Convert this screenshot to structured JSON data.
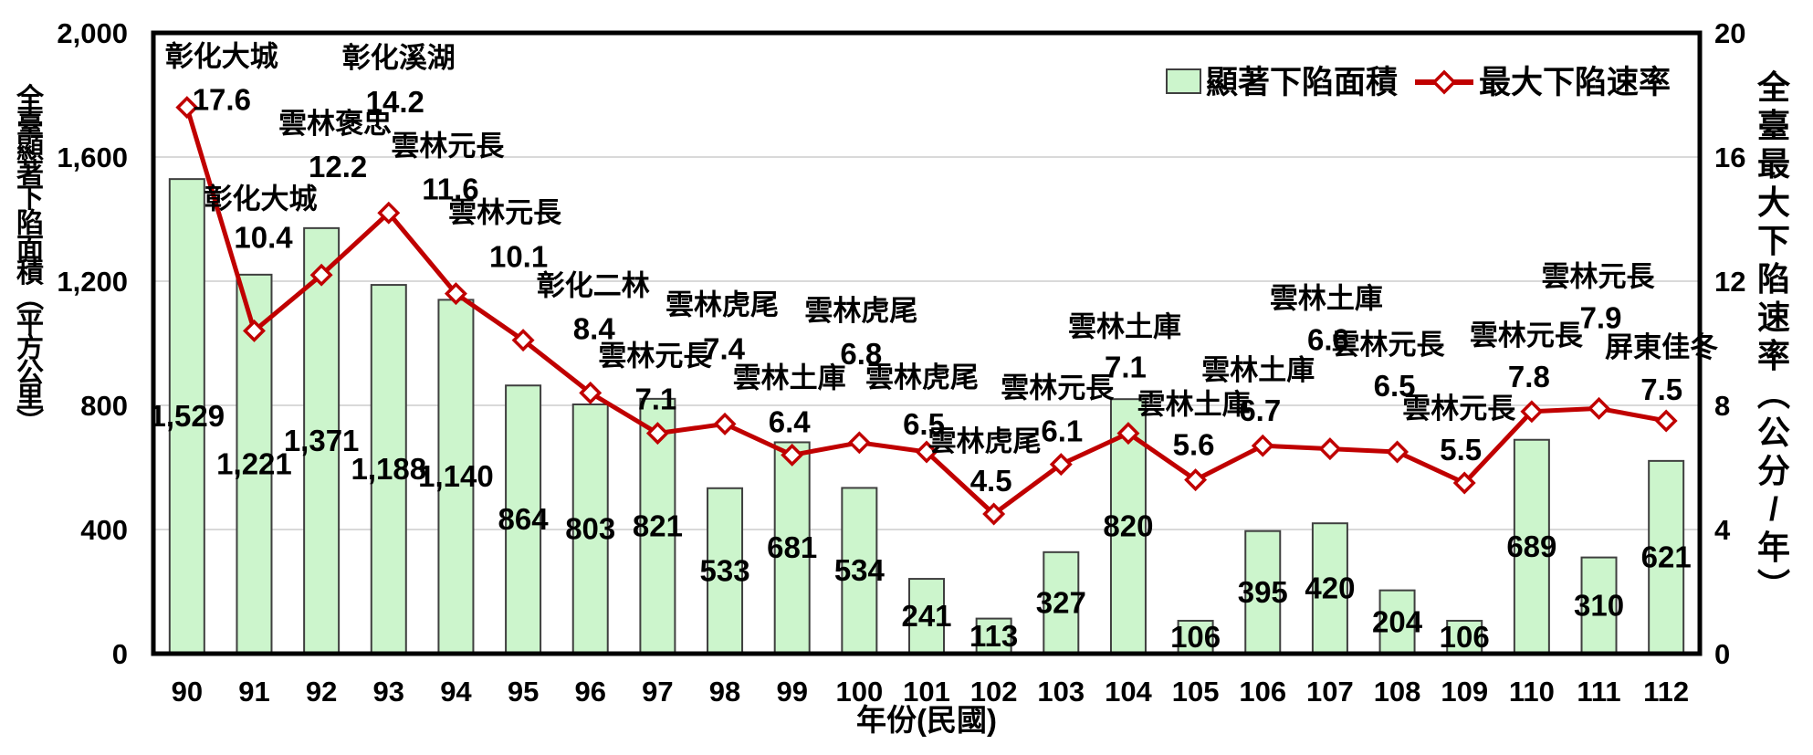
{
  "chart": {
    "background": "#ffffff",
    "colors": {
      "bar_fill": "#ccf5cc",
      "bar_border": "#3f3f3f",
      "line": "#c00000",
      "marker_fill": "#ffffff",
      "grid": "#d9d9d9",
      "frame": "#000000",
      "text": "#000000"
    },
    "legend": {
      "area_label": "顯著下陷面積",
      "rate_label": "最大下陷速率"
    }
  },
  "chart_data": {
    "type": "combo-bar-line",
    "title": "",
    "xlabel": "年份(民國)",
    "ylabel_left": "全臺顯著下陷面積(平方公里)",
    "ylabel_right": "全臺最大下陷速率(公分/年)",
    "categories": [
      "90",
      "91",
      "92",
      "93",
      "94",
      "95",
      "96",
      "97",
      "98",
      "99",
      "100",
      "101",
      "102",
      "103",
      "104",
      "105",
      "106",
      "107",
      "108",
      "109",
      "110",
      "111",
      "112"
    ],
    "left_axis": {
      "min": 0,
      "max": 2000,
      "tick_step": 400,
      "tick_labels": [
        "0",
        "400",
        "800",
        "1,200",
        "1,600",
        "2,000"
      ]
    },
    "right_axis": {
      "min": 0,
      "max": 20,
      "tick_step": 4,
      "tick_labels": [
        "0",
        "4",
        "8",
        "12",
        "16",
        "20"
      ]
    },
    "grid": true,
    "legend_position": "top-right",
    "series": [
      {
        "name": "顯著下陷面積",
        "type": "bar",
        "axis": "left",
        "unit": "平方公里",
        "values": [
          1529,
          1221,
          1371,
          1188,
          1140,
          864,
          803,
          821,
          533,
          681,
          534,
          241,
          113,
          327,
          820,
          106,
          395,
          420,
          204,
          106,
          689,
          310,
          621
        ]
      },
      {
        "name": "最大下陷速率",
        "type": "line",
        "axis": "right",
        "unit": "公分/年",
        "values": [
          17.6,
          10.4,
          12.2,
          14.2,
          11.6,
          10.1,
          8.4,
          7.1,
          7.4,
          6.4,
          6.8,
          6.5,
          4.5,
          6.1,
          7.1,
          5.6,
          6.7,
          6.6,
          6.5,
          5.5,
          7.8,
          7.9,
          7.5
        ],
        "point_locations": [
          "彰化大城",
          "彰化大城",
          "雲林褒忠",
          "彰化溪湖",
          "雲林元長",
          "雲林元長",
          "彰化二林",
          "雲林元長",
          "雲林虎尾",
          "雲林土庫",
          "雲林虎尾",
          "雲林虎尾",
          "雲林虎尾",
          "雲林元長",
          "雲林土庫",
          "雲林土庫",
          "雲林土庫",
          "雲林土庫",
          "雲林元長",
          "雲林元長",
          "雲林元長",
          "雲林元長",
          "屏東佳冬"
        ]
      }
    ]
  }
}
